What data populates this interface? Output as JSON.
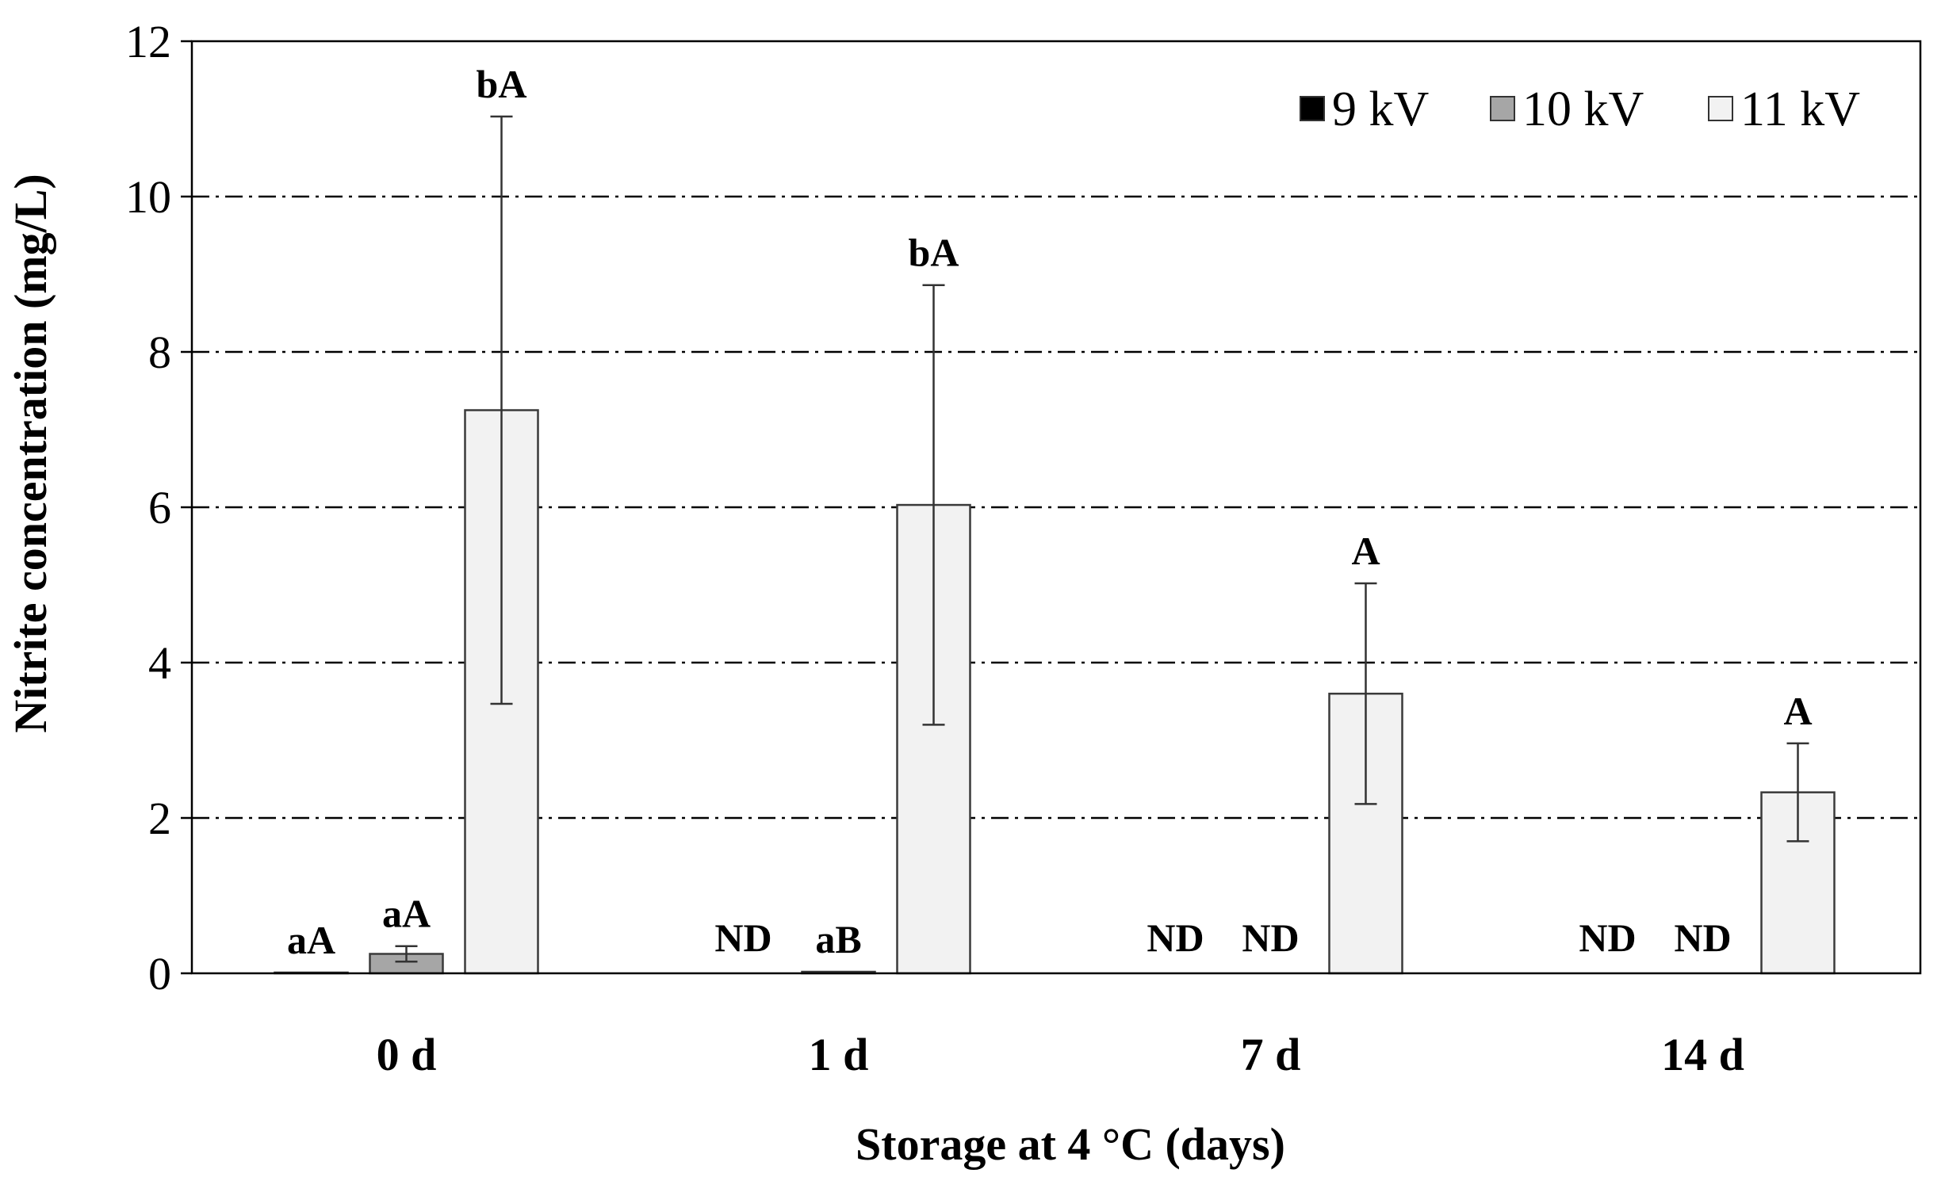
{
  "chart_data": {
    "type": "bar",
    "title": "",
    "xlabel": "Storage at 4 °C (days)",
    "ylabel": "Nitrite concentration (mg/L)",
    "ylim": [
      0,
      12
    ],
    "yticks": [
      "0",
      "2",
      "4",
      "6",
      "8",
      "10",
      "12"
    ],
    "grid": "horizontal dash-dot",
    "legend_position": "top-right",
    "categories": [
      "0 d",
      "1 d",
      "7 d",
      "14 d"
    ],
    "series": [
      {
        "name": "9 kV",
        "color": "#000000",
        "values": [
          0.01,
          0,
          0,
          0
        ],
        "errors": [
          0,
          0,
          0,
          0
        ],
        "labels": [
          "aA",
          "ND",
          "ND",
          "ND"
        ]
      },
      {
        "name": "10 kV",
        "color": "#a6a6a6",
        "values": [
          0.25,
          0.02,
          0,
          0
        ],
        "errors": [
          0.1,
          0,
          0,
          0
        ],
        "labels": [
          "aA",
          "aB",
          "ND",
          "ND"
        ]
      },
      {
        "name": "11 kV",
        "color": "#f2f2f2",
        "values": [
          7.25,
          6.03,
          3.6,
          2.33
        ],
        "errors": [
          3.78,
          2.83,
          1.42,
          0.63
        ],
        "labels": [
          "bA",
          "bA",
          "A",
          "A"
        ]
      }
    ]
  }
}
